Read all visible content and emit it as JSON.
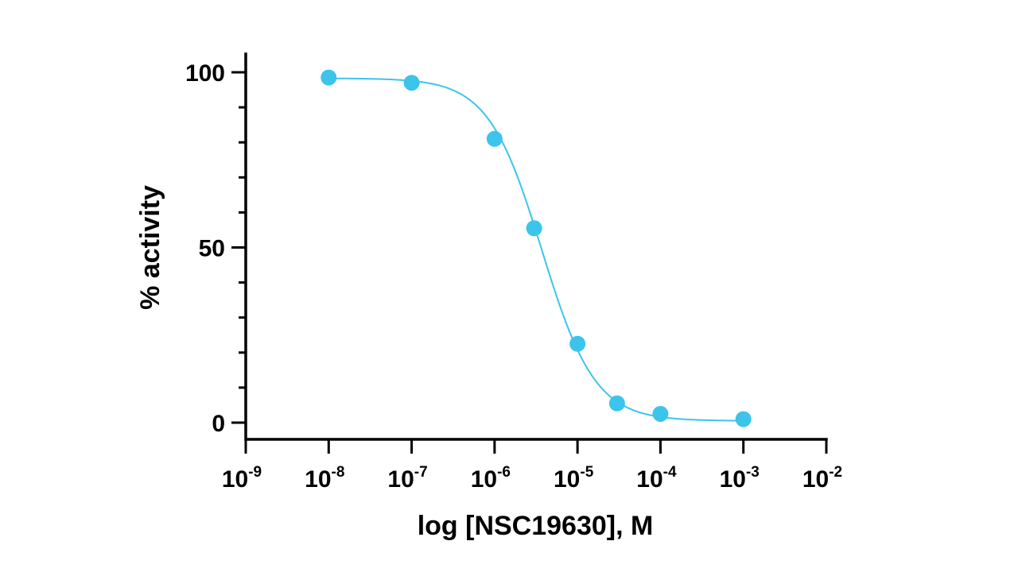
{
  "chart_data": {
    "type": "scatter",
    "xlabel": "log [NSC19630], M",
    "ylabel": "% activity",
    "x_scale": "log",
    "xlim": [
      1e-09,
      0.01
    ],
    "ylim": [
      -5,
      105
    ],
    "x_ticks": [
      {
        "base": "10",
        "exp": "-9"
      },
      {
        "base": "10",
        "exp": "-8"
      },
      {
        "base": "10",
        "exp": "-7"
      },
      {
        "base": "10",
        "exp": "-6"
      },
      {
        "base": "10",
        "exp": "-5"
      },
      {
        "base": "10",
        "exp": "-4"
      },
      {
        "base": "10",
        "exp": "-3"
      },
      {
        "base": "10",
        "exp": "-2"
      }
    ],
    "y_major_ticks": [
      0,
      50,
      100
    ],
    "y_minor_ticks": [
      10,
      20,
      30,
      40,
      60,
      70,
      80,
      90
    ],
    "grid": false,
    "legend": "none",
    "series": [
      {
        "points": [
          {
            "x": 1e-08,
            "y": 98.5
          },
          {
            "x": 1e-07,
            "y": 97
          },
          {
            "x": 1e-06,
            "y": 81
          },
          {
            "x": 3e-06,
            "y": 55.5
          },
          {
            "x": 1e-05,
            "y": 22.5
          },
          {
            "x": 3e-05,
            "y": 5.5
          },
          {
            "x": 0.0001,
            "y": 2.5
          },
          {
            "x": 0.001,
            "y": 1
          }
        ],
        "fit": {
          "model": "four-parameter logistic",
          "top": 98.3,
          "bottom": 0.5,
          "ic50": 3.7e-06,
          "hill_slope": 1.35
        },
        "color": "#3cc4eb"
      }
    ]
  }
}
